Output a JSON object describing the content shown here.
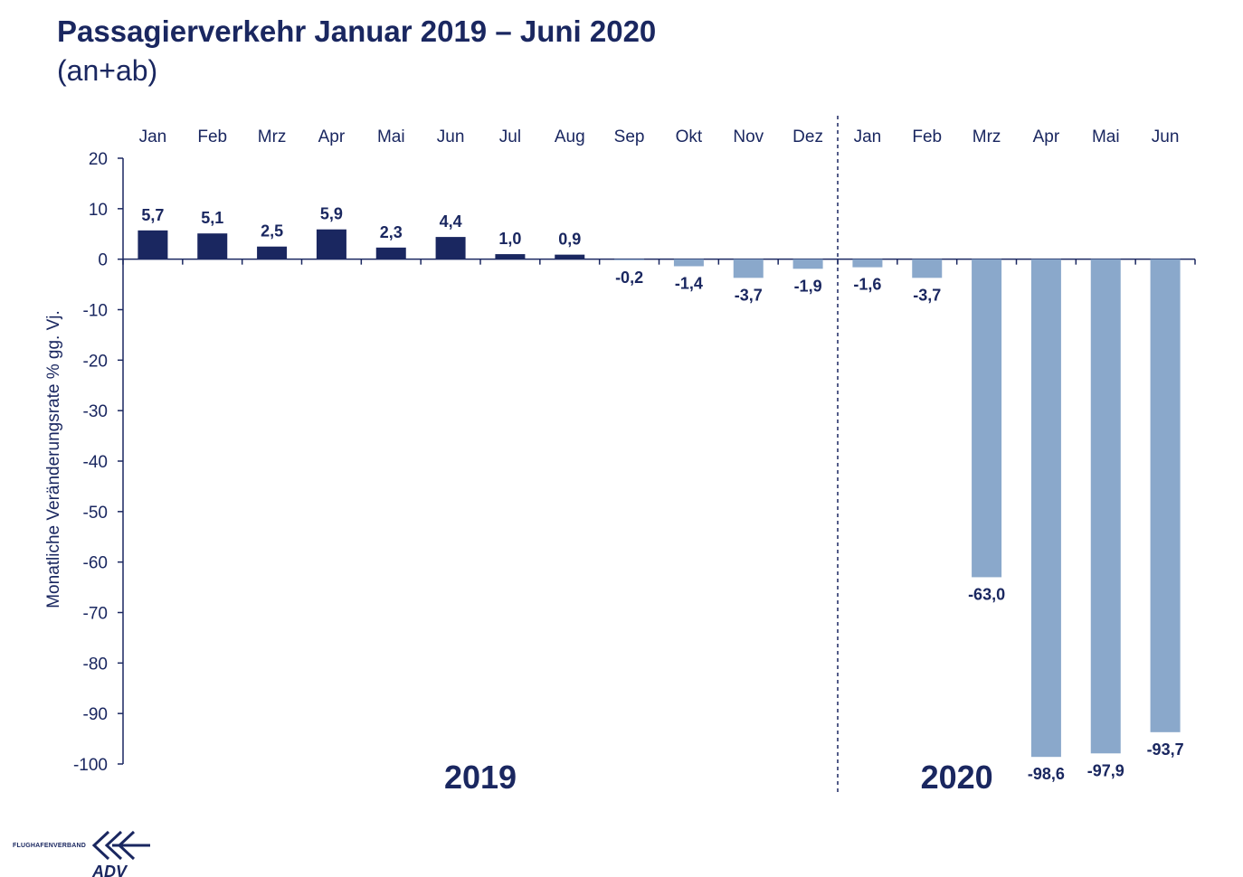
{
  "header": {
    "title": "Passagierverkehr Januar 2019 – Juni 2020",
    "subtitle": "(an+ab)"
  },
  "colors": {
    "text": "#1a2760",
    "bar_2019_positive": "#1a2760",
    "bar_negative": "#8aa8cb",
    "axis": "#1a2760"
  },
  "logo": {
    "text": "FLUGHAFENVERBAND",
    "mark": "ADV",
    "icon": "adv-arrows-icon"
  },
  "chart_data": {
    "type": "bar",
    "categories": [
      "Jan",
      "Feb",
      "Mrz",
      "Apr",
      "Mai",
      "Jun",
      "Jul",
      "Aug",
      "Sep",
      "Okt",
      "Nov",
      "Dez",
      "Jan",
      "Feb",
      "Mrz",
      "Apr",
      "Mai",
      "Jun"
    ],
    "values": [
      5.7,
      5.1,
      2.5,
      5.9,
      2.3,
      4.4,
      1.0,
      0.9,
      -0.2,
      -1.4,
      -3.7,
      -1.9,
      -1.6,
      -3.7,
      -63.0,
      -98.6,
      -97.9,
      -93.7
    ],
    "data_labels": [
      "5,7",
      "5,1",
      "2,5",
      "5,9",
      "2,3",
      "4,4",
      "1,0",
      "0,9",
      "-0,2",
      "-1,4",
      "-3,7",
      "-1,9",
      "-1,6",
      "-3,7",
      "-63,0",
      "-98,6",
      "-97,9",
      "-93,7"
    ],
    "ylabel": "Monatliche Veränderungsrate % gg. Vj.",
    "ylim": [
      -100,
      20
    ],
    "yticks": [
      20,
      10,
      0,
      -10,
      -20,
      -30,
      -40,
      -50,
      -60,
      -70,
      -80,
      -90,
      -100
    ],
    "groups": [
      {
        "label": "2019",
        "start": 0,
        "end": 11
      },
      {
        "label": "2020",
        "start": 12,
        "end": 17
      }
    ],
    "separator_after_index": 11,
    "category_axis_position": "top",
    "grid": false,
    "legend": "none"
  }
}
